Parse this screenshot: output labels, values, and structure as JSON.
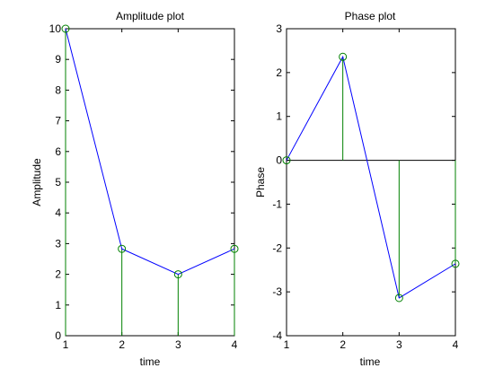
{
  "colors": {
    "line": "#0000ff",
    "stem": "#008000",
    "marker": "#008000",
    "axes": "#000000",
    "background": "#ffffff"
  },
  "chart_data": [
    {
      "type": "line",
      "title": "Amplitude plot",
      "xlabel": "time",
      "ylabel": "Amplitude",
      "x": [
        1,
        2,
        3,
        4
      ],
      "values": [
        10,
        2.83,
        2.0,
        2.83
      ],
      "stems": true,
      "markers": "circle",
      "xlim": [
        1,
        4
      ],
      "ylim": [
        0,
        10
      ],
      "xticks": [
        1,
        2,
        3,
        4
      ],
      "yticks": [
        0,
        1,
        2,
        3,
        4,
        5,
        6,
        7,
        8,
        9,
        10
      ],
      "zero_line": false,
      "grid": false
    },
    {
      "type": "line",
      "title": "Phase plot",
      "xlabel": "time",
      "ylabel": "Phase",
      "x": [
        1,
        2,
        3,
        4
      ],
      "values": [
        0,
        2.36,
        -3.14,
        -2.36
      ],
      "stems": true,
      "markers": "circle",
      "xlim": [
        1,
        4
      ],
      "ylim": [
        -4,
        3
      ],
      "xticks": [
        1,
        2,
        3,
        4
      ],
      "yticks": [
        -4,
        -3,
        -2,
        -1,
        0,
        1,
        2,
        3
      ],
      "zero_line": true,
      "grid": false
    }
  ]
}
